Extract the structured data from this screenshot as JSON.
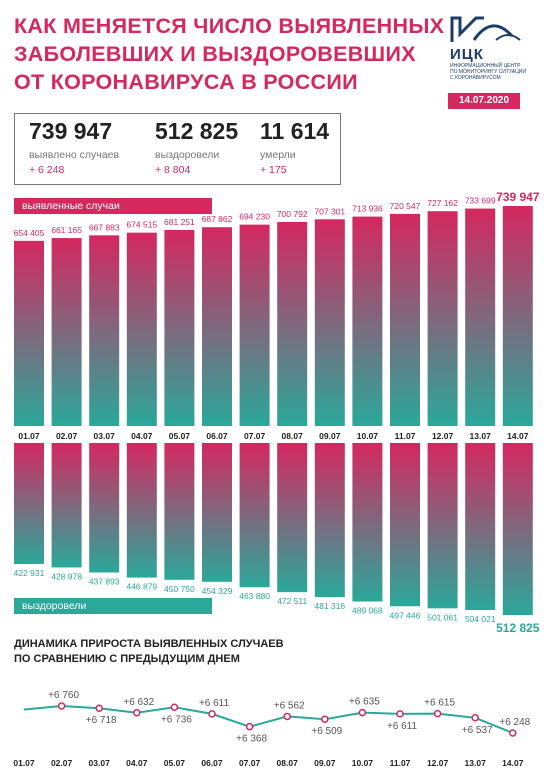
{
  "header": {
    "title_lines": [
      "КАК МЕНЯЕТСЯ ЧИСЛО ВЫЯВЛЕННЫХ",
      "ЗАБОЛЕВШИХ И ВЫЗДОРОВЕВШИХ",
      "ОТ КОРОНАВИРУСА В РОССИИ"
    ],
    "logo_text": "ИЦК",
    "logo_sub_lines": [
      "ИНФОРМАЦИОННЫЙ ЦЕНТР",
      "ПО МОНИТОРИНГУ СИТУАЦИИ",
      "С КОРОНАВИРУСОМ"
    ],
    "date": "14.07.2020"
  },
  "stats": [
    {
      "value": "739 947",
      "label": "выявлено случаев",
      "delta": "+ 6 248"
    },
    {
      "value": "512 825",
      "label": "выздоровели",
      "delta": "+ 8 804"
    },
    {
      "value": "11 614",
      "label": "умерли",
      "delta": "+ 175"
    }
  ],
  "labels": {
    "cases_tag": "выявленные случаи",
    "recovered_tag": "выздоровели",
    "subtitle_lines": [
      "ДИНАМИКА ПРИРОСТА ВЫЯВЛЕННЫХ СЛУЧАЕВ",
      "ПО СРАВНЕНИЮ С ПРЕДЫДУЩИМ ДНЕМ"
    ]
  },
  "colors": {
    "accent": "#d4285f",
    "teal": "#2aa89a",
    "navy": "#1d3e6b"
  },
  "chart_data": [
    {
      "type": "bar",
      "categories": [
        "01.07",
        "02.07",
        "03.07",
        "04.07",
        "05.07",
        "06.07",
        "07.07",
        "08.07",
        "09.07",
        "10.07",
        "11.07",
        "12.07",
        "13.07",
        "14.07"
      ],
      "values": [
        654405,
        661165,
        667883,
        674515,
        681251,
        687862,
        694230,
        700792,
        707301,
        713936,
        720547,
        727162,
        733699,
        739947
      ],
      "labels": [
        "654 405",
        "661 165",
        "667 883",
        "674 515",
        "681 251",
        "687 862",
        "694 230",
        "700 792",
        "707 301",
        "713 936",
        "720 547",
        "727 162",
        "733 699",
        "739 947"
      ],
      "series_name": "выявленные случаи"
    },
    {
      "type": "bar",
      "categories": [
        "01.07",
        "02.07",
        "03.07",
        "04.07",
        "05.07",
        "06.07",
        "07.07",
        "08.07",
        "09.07",
        "10.07",
        "11.07",
        "12.07",
        "13.07",
        "14.07"
      ],
      "values": [
        422931,
        428978,
        437893,
        446879,
        450750,
        454329,
        463880,
        472511,
        481316,
        489068,
        497446,
        501061,
        504021,
        512825
      ],
      "labels": [
        "422 931",
        "428 978",
        "437 893",
        "446 879",
        "450 750",
        "454 329",
        "463 880",
        "472 511",
        "481 316",
        "489 068",
        "497 446",
        "501 061",
        "504 021",
        "512 825"
      ],
      "series_name": "выздоровели"
    },
    {
      "type": "line",
      "title": "ДИНАМИКА ПРИРОСТА ВЫЯВЛЕННЫХ СЛУЧАЕВ ПО СРАВНЕНИЮ С ПРЕДЫДУЩИМ ДНЕМ",
      "categories": [
        "01.07",
        "02.07",
        "03.07",
        "04.07",
        "05.07",
        "06.07",
        "07.07",
        "08.07",
        "09.07",
        "10.07",
        "11.07",
        "12.07",
        "13.07",
        "14.07"
      ],
      "values": [
        6693,
        6760,
        6718,
        6632,
        6736,
        6611,
        6368,
        6562,
        6509,
        6635,
        6611,
        6615,
        6537,
        6248
      ],
      "labels": [
        "",
        "+6 760",
        "+6 718",
        "+6 632",
        "+6 736",
        "+6 611",
        "+6 368",
        "+6 562",
        "+6 509",
        "+6 635",
        "+6 611",
        "+6 615",
        "+6 537",
        "+6 248"
      ]
    }
  ]
}
